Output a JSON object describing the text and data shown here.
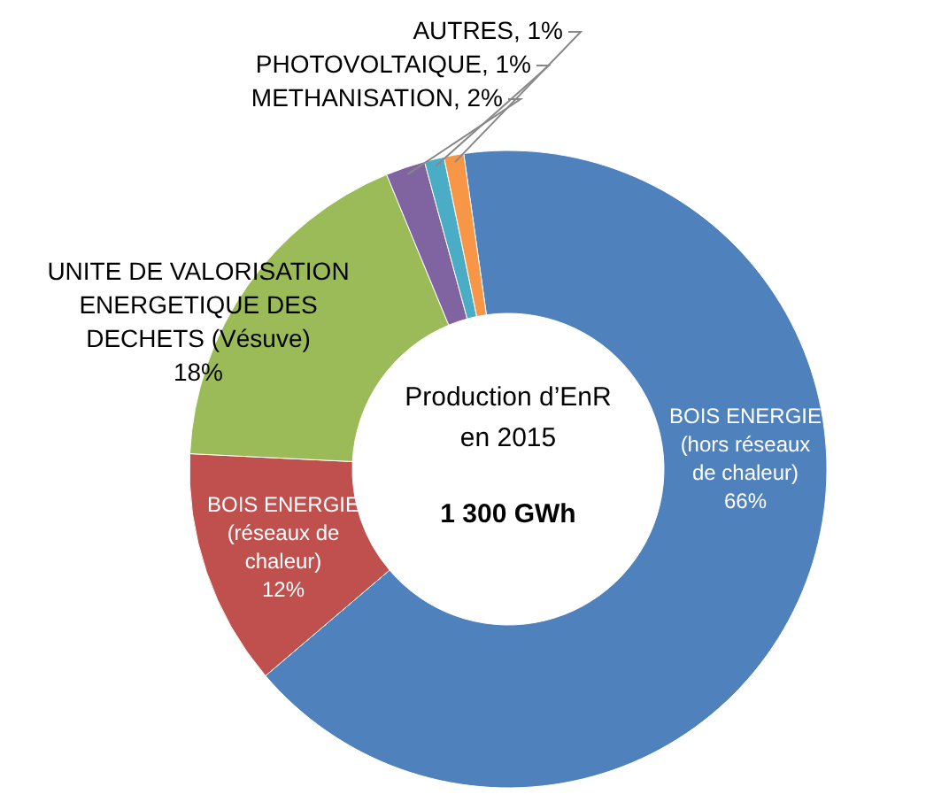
{
  "chart_data": {
    "type": "donut",
    "title": "Production d’EnR en 2015",
    "annotations": [
      "1 300 GWh"
    ],
    "categories": [
      "BOIS ENERGIE (hors réseaux de chaleur)",
      "BOIS ENERGIE (réseaux de chaleur)",
      "UNITE DE VALORISATION ENERGETIQUE DES DECHETS (Vésuve)",
      "METHANISATION",
      "PHOTOVOLTAIQUE",
      "AUTRES"
    ],
    "values": [
      66,
      12,
      18,
      2,
      1,
      1
    ],
    "colors": [
      "#4f81bd",
      "#c0504d",
      "#9bbb59",
      "#8064a2",
      "#4bacc6",
      "#f79646"
    ],
    "value_labels": [
      "66%",
      "12%",
      "18%",
      "2%",
      "1%",
      "1%"
    ]
  }
}
